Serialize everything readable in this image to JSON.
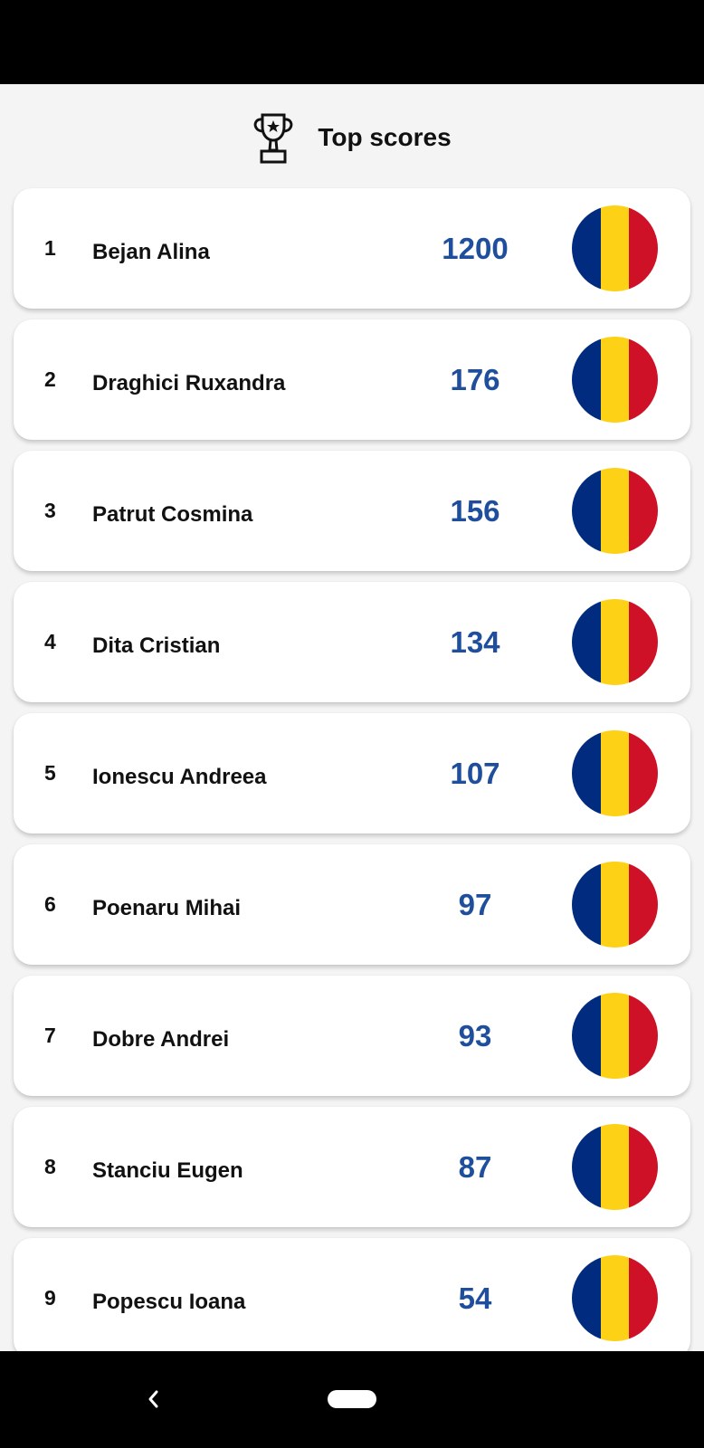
{
  "header": {
    "title": "Top scores",
    "icon": "trophy-icon"
  },
  "colors": {
    "score": "#1f4e9c",
    "flag_blue": "#002b7f",
    "flag_yellow": "#fcd116",
    "flag_red": "#ce1126"
  },
  "scores": [
    {
      "rank": "1",
      "name": "Bejan Alina",
      "score": "1200",
      "flag": "romania-flag"
    },
    {
      "rank": "2",
      "name": "Draghici Ruxandra",
      "score": "176",
      "flag": "romania-flag"
    },
    {
      "rank": "3",
      "name": "Patrut Cosmina",
      "score": "156",
      "flag": "romania-flag"
    },
    {
      "rank": "4",
      "name": "Dita Cristian",
      "score": "134",
      "flag": "romania-flag"
    },
    {
      "rank": "5",
      "name": "Ionescu Andreea",
      "score": "107",
      "flag": "romania-flag"
    },
    {
      "rank": "6",
      "name": "Poenaru Mihai",
      "score": "97",
      "flag": "romania-flag"
    },
    {
      "rank": "7",
      "name": "Dobre Andrei",
      "score": "93",
      "flag": "romania-flag"
    },
    {
      "rank": "8",
      "name": "Stanciu Eugen",
      "score": "87",
      "flag": "romania-flag"
    },
    {
      "rank": "9",
      "name": "Popescu Ioana",
      "score": "54",
      "flag": "romania-flag"
    }
  ],
  "nav": {
    "back_icon": "back-chevron-icon",
    "home_icon": "home-pill-icon"
  }
}
